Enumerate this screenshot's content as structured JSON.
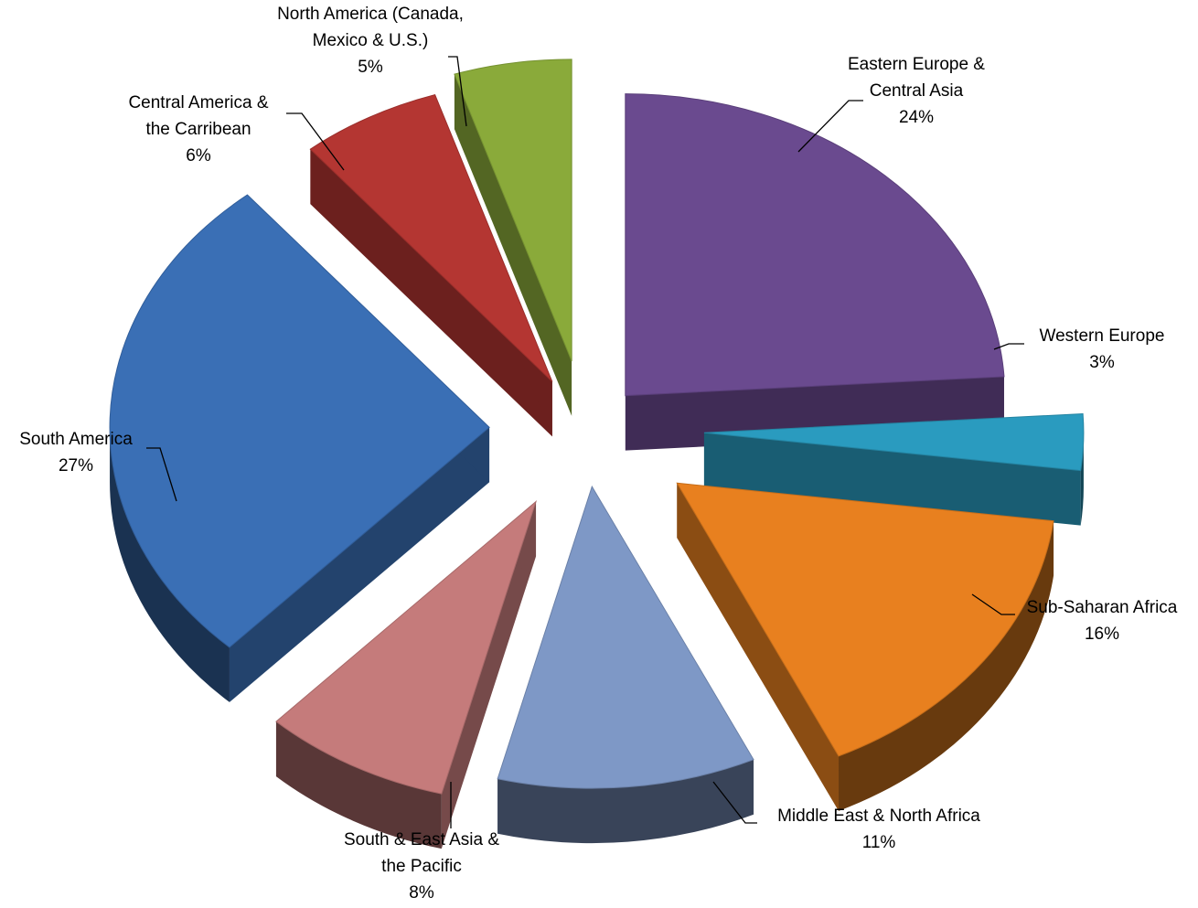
{
  "chart_data": {
    "type": "pie",
    "title": "",
    "three_d": true,
    "exploded": true,
    "legend": "none",
    "slices": [
      {
        "label": "Eastern Europe & Central Asia",
        "label_lines": [
          "Eastern Europe &",
          "Central Asia"
        ],
        "value": 24,
        "value_label": "24%",
        "color": "#6A4A8F"
      },
      {
        "label": "Western Europe",
        "label_lines": [
          "Western Europe"
        ],
        "value": 3,
        "value_label": "3%",
        "color": "#2A9BBF"
      },
      {
        "label": "Sub-Saharan Africa",
        "label_lines": [
          "Sub-Saharan Africa"
        ],
        "value": 16,
        "value_label": "16%",
        "color": "#E8801F"
      },
      {
        "label": "Middle East & North Africa",
        "label_lines": [
          "Middle East & North Africa"
        ],
        "value": 11,
        "value_label": "11%",
        "color": "#7E98C6"
      },
      {
        "label": "South & East Asia & the Pacific",
        "label_lines": [
          "South & East Asia &",
          "the Pacific"
        ],
        "value": 8,
        "value_label": "8%",
        "color": "#C57B7B"
      },
      {
        "label": "South America",
        "label_lines": [
          "South America"
        ],
        "value": 27,
        "value_label": "27%",
        "color": "#3A6FB5"
      },
      {
        "label": "Central America & the Carribean",
        "label_lines": [
          "Central America &",
          "the Carribean"
        ],
        "value": 6,
        "value_label": "6%",
        "color": "#B43632"
      },
      {
        "label": "North America (Canada, Mexico & U.S.)",
        "label_lines": [
          "North America (Canada,",
          "Mexico & U.S.)"
        ],
        "value": 5,
        "value_label": "5%",
        "color": "#8AAA3A"
      }
    ]
  }
}
